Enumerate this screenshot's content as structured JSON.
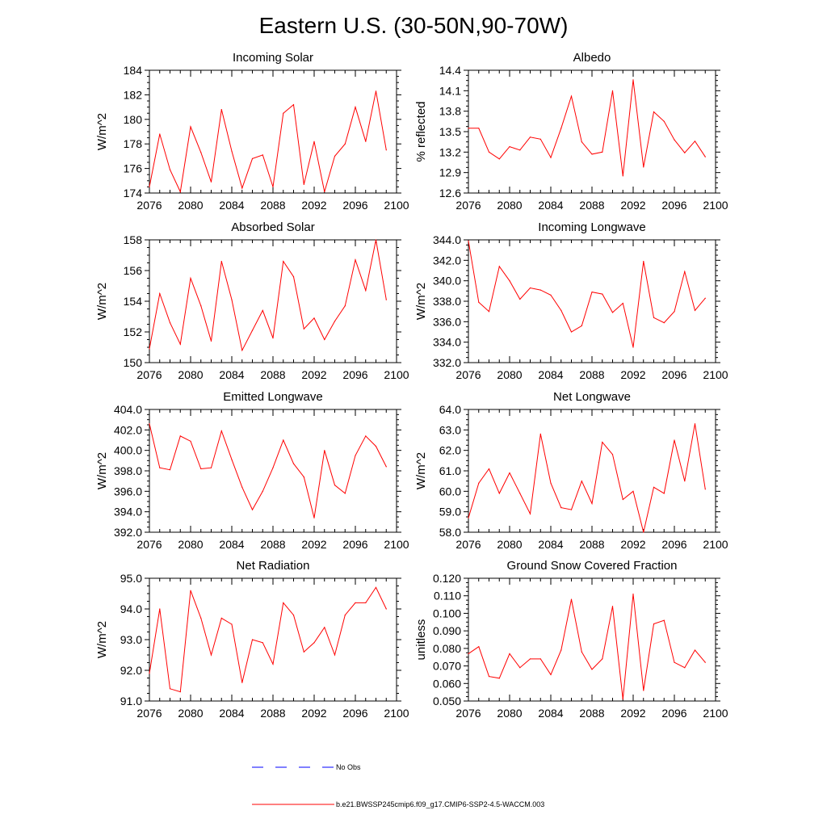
{
  "figure_title": "Eastern U.S. (30-50N,90-70W)",
  "legend": [
    {
      "label": "No Obs",
      "color": "#0000ff",
      "style": "dashed"
    },
    {
      "label": "b.e21.BWSSP245cmip6.f09_g17.CMIP6-SSP2-4.5-WACCM.003",
      "color": "#ff0000",
      "style": "solid"
    }
  ],
  "colors": {
    "series": "#ff0000",
    "obs": "#0000ff",
    "axes": "#000000"
  },
  "chart_data": [
    {
      "type": "line",
      "title": "Incoming Solar",
      "xlabel": "",
      "ylabel": "W/m^2",
      "xlim": [
        2076,
        2100
      ],
      "ylim": [
        174,
        184
      ],
      "xticks": [
        "2076",
        "2080",
        "2084",
        "2088",
        "2092",
        "2096",
        "2100"
      ],
      "yticks": [
        "174",
        "176",
        "178",
        "180",
        "182",
        "184"
      ],
      "x": [
        2076,
        2077,
        2078,
        2079,
        2080,
        2081,
        2082,
        2083,
        2084,
        2085,
        2086,
        2087,
        2088,
        2089,
        2090,
        2091,
        2092,
        2093,
        2094,
        2095,
        2096,
        2097,
        2098,
        2099
      ],
      "series": [
        {
          "values": [
            174.5,
            178.8,
            175.9,
            174.1,
            179.4,
            177.3,
            174.9,
            180.8,
            177.4,
            174.4,
            176.8,
            177.1,
            174.5,
            180.5,
            181.2,
            174.7,
            178.2,
            174.1,
            177.0,
            178.0,
            181.0,
            178.2,
            182.3,
            177.5
          ]
        }
      ]
    },
    {
      "type": "line",
      "title": "Albedo",
      "xlabel": "",
      "ylabel": "% reflected",
      "xlim": [
        2076,
        2100
      ],
      "ylim": [
        12.6,
        14.4
      ],
      "xticks": [
        "2076",
        "2080",
        "2084",
        "2088",
        "2092",
        "2096",
        "2100"
      ],
      "yticks": [
        "12.6",
        "12.9",
        "13.2",
        "13.5",
        "13.8",
        "14.1",
        "14.4"
      ],
      "x": [
        2076,
        2077,
        2078,
        2079,
        2080,
        2081,
        2082,
        2083,
        2084,
        2085,
        2086,
        2087,
        2088,
        2089,
        2090,
        2091,
        2092,
        2093,
        2094,
        2095,
        2096,
        2097,
        2098,
        2099
      ],
      "series": [
        {
          "values": [
            13.55,
            13.55,
            13.2,
            13.1,
            13.28,
            13.23,
            13.42,
            13.39,
            13.12,
            13.55,
            14.02,
            13.35,
            13.17,
            13.2,
            14.1,
            12.85,
            14.26,
            12.98,
            13.79,
            13.65,
            13.38,
            13.19,
            13.36,
            13.13
          ]
        }
      ]
    },
    {
      "type": "line",
      "title": "Absorbed Solar",
      "xlabel": "",
      "ylabel": "W/m^2",
      "xlim": [
        2076,
        2100
      ],
      "ylim": [
        150,
        158
      ],
      "xticks": [
        "2076",
        "2080",
        "2084",
        "2088",
        "2092",
        "2096",
        "2100"
      ],
      "yticks": [
        "150",
        "152",
        "154",
        "156",
        "158"
      ],
      "x": [
        2076,
        2077,
        2078,
        2079,
        2080,
        2081,
        2082,
        2083,
        2084,
        2085,
        2086,
        2087,
        2088,
        2089,
        2090,
        2091,
        2092,
        2093,
        2094,
        2095,
        2096,
        2097,
        2098,
        2099
      ],
      "series": [
        {
          "values": [
            150.9,
            154.5,
            152.6,
            151.2,
            155.5,
            153.7,
            151.4,
            156.6,
            154.1,
            150.8,
            152.1,
            153.4,
            151.6,
            156.6,
            155.6,
            152.2,
            152.9,
            151.5,
            152.7,
            153.7,
            156.7,
            154.7,
            158.0,
            154.1
          ]
        }
      ]
    },
    {
      "type": "line",
      "title": "Incoming Longwave",
      "xlabel": "",
      "ylabel": "W/m^2",
      "xlim": [
        2076,
        2100
      ],
      "ylim": [
        332,
        344
      ],
      "xticks": [
        "2076",
        "2080",
        "2084",
        "2088",
        "2092",
        "2096",
        "2100"
      ],
      "yticks": [
        "332.0",
        "334.0",
        "336.0",
        "338.0",
        "340.0",
        "342.0",
        "344.0"
      ],
      "x": [
        2076,
        2077,
        2078,
        2079,
        2080,
        2081,
        2082,
        2083,
        2084,
        2085,
        2086,
        2087,
        2088,
        2089,
        2090,
        2091,
        2092,
        2093,
        2094,
        2095,
        2096,
        2097,
        2098,
        2099
      ],
      "series": [
        {
          "values": [
            343.9,
            337.9,
            337.0,
            341.4,
            340.0,
            338.2,
            339.3,
            339.1,
            338.6,
            337.1,
            335.0,
            335.6,
            338.9,
            338.7,
            336.9,
            337.8,
            333.5,
            341.9,
            336.4,
            335.9,
            337.0,
            340.9,
            337.1,
            338.3
          ]
        }
      ]
    },
    {
      "type": "line",
      "title": "Emitted Longwave",
      "xlabel": "",
      "ylabel": "W/m^2",
      "xlim": [
        2076,
        2100
      ],
      "ylim": [
        392,
        404
      ],
      "xticks": [
        "2076",
        "2080",
        "2084",
        "2088",
        "2092",
        "2096",
        "2100"
      ],
      "yticks": [
        "392.0",
        "394.0",
        "396.0",
        "398.0",
        "400.0",
        "402.0",
        "404.0"
      ],
      "x": [
        2076,
        2077,
        2078,
        2079,
        2080,
        2081,
        2082,
        2083,
        2084,
        2085,
        2086,
        2087,
        2088,
        2089,
        2090,
        2091,
        2092,
        2093,
        2094,
        2095,
        2096,
        2097,
        2098,
        2099
      ],
      "series": [
        {
          "values": [
            402.6,
            398.3,
            398.1,
            401.4,
            400.9,
            398.2,
            398.3,
            401.9,
            399.1,
            396.4,
            394.2,
            396.0,
            398.3,
            401.0,
            398.7,
            397.4,
            393.4,
            400.0,
            396.6,
            395.8,
            399.5,
            401.4,
            400.4,
            398.4
          ]
        }
      ]
    },
    {
      "type": "line",
      "title": "Net Longwave",
      "xlabel": "",
      "ylabel": "W/m^2",
      "xlim": [
        2076,
        2100
      ],
      "ylim": [
        58,
        64
      ],
      "xticks": [
        "2076",
        "2080",
        "2084",
        "2088",
        "2092",
        "2096",
        "2100"
      ],
      "yticks": [
        "58.0",
        "59.0",
        "60.0",
        "61.0",
        "62.0",
        "63.0",
        "64.0"
      ],
      "x": [
        2076,
        2077,
        2078,
        2079,
        2080,
        2081,
        2082,
        2083,
        2084,
        2085,
        2086,
        2087,
        2088,
        2089,
        2090,
        2091,
        2092,
        2093,
        2094,
        2095,
        2096,
        2097,
        2098,
        2099
      ],
      "series": [
        {
          "values": [
            58.7,
            60.4,
            61.1,
            59.9,
            60.9,
            59.9,
            58.9,
            62.8,
            60.4,
            59.2,
            59.1,
            60.5,
            59.4,
            62.4,
            61.8,
            59.6,
            60.0,
            58.0,
            60.2,
            59.9,
            62.5,
            60.5,
            63.3,
            60.1
          ]
        }
      ]
    },
    {
      "type": "line",
      "title": "Net Radiation",
      "xlabel": "",
      "ylabel": "W/m^2",
      "xlim": [
        2076,
        2100
      ],
      "ylim": [
        91,
        95
      ],
      "xticks": [
        "2076",
        "2080",
        "2084",
        "2088",
        "2092",
        "2096",
        "2100"
      ],
      "yticks": [
        "91.0",
        "92.0",
        "93.0",
        "94.0",
        "95.0"
      ],
      "x": [
        2076,
        2077,
        2078,
        2079,
        2080,
        2081,
        2082,
        2083,
        2084,
        2085,
        2086,
        2087,
        2088,
        2089,
        2090,
        2091,
        2092,
        2093,
        2094,
        2095,
        2096,
        2097,
        2098,
        2099
      ],
      "series": [
        {
          "values": [
            91.9,
            94.0,
            91.4,
            91.3,
            94.6,
            93.7,
            92.5,
            93.7,
            93.5,
            91.6,
            93.0,
            92.9,
            92.2,
            94.2,
            93.8,
            92.6,
            92.9,
            93.4,
            92.5,
            93.8,
            94.2,
            94.2,
            94.7,
            94.0
          ]
        }
      ]
    },
    {
      "type": "line",
      "title": "Ground Snow Covered Fraction",
      "xlabel": "",
      "ylabel": "unitless",
      "xlim": [
        2076,
        2100
      ],
      "ylim": [
        0.05,
        0.12
      ],
      "xticks": [
        "2076",
        "2080",
        "2084",
        "2088",
        "2092",
        "2096",
        "2100"
      ],
      "yticks": [
        "0.050",
        "0.060",
        "0.070",
        "0.080",
        "0.090",
        "0.100",
        "0.110",
        "0.120"
      ],
      "x": [
        2076,
        2077,
        2078,
        2079,
        2080,
        2081,
        2082,
        2083,
        2084,
        2085,
        2086,
        2087,
        2088,
        2089,
        2090,
        2091,
        2092,
        2093,
        2094,
        2095,
        2096,
        2097,
        2098,
        2099
      ],
      "series": [
        {
          "values": [
            0.077,
            0.081,
            0.064,
            0.063,
            0.077,
            0.069,
            0.074,
            0.074,
            0.065,
            0.079,
            0.108,
            0.078,
            0.068,
            0.074,
            0.104,
            0.051,
            0.111,
            0.056,
            0.094,
            0.096,
            0.072,
            0.069,
            0.079,
            0.072
          ]
        }
      ]
    }
  ]
}
